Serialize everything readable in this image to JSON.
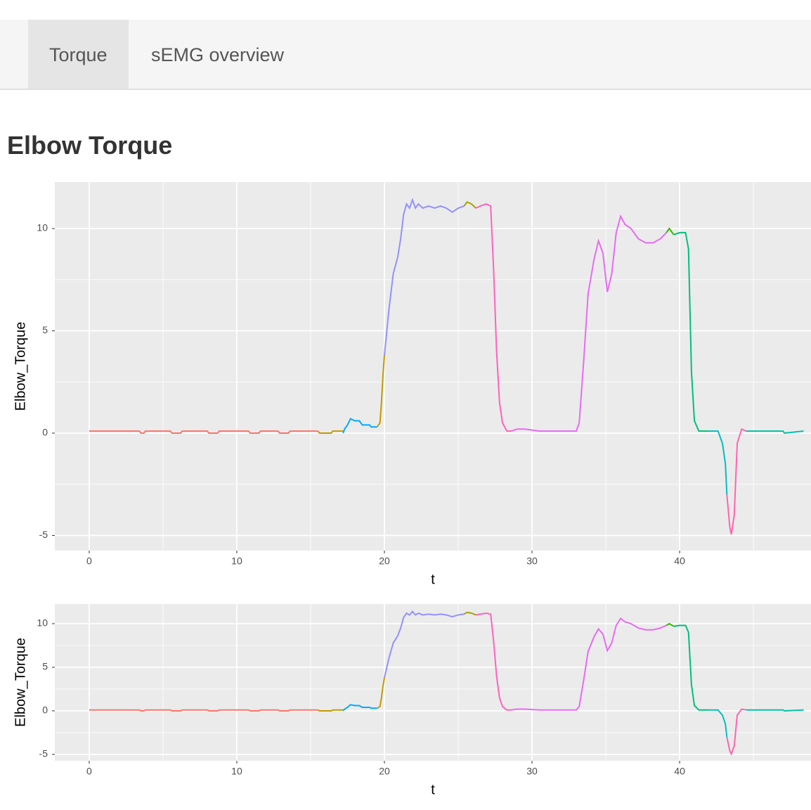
{
  "tabs": [
    "Torque",
    "sEMG overview"
  ],
  "heading": "Elbow Torque",
  "chart_data": [
    {
      "type": "line",
      "xlabel": "t",
      "ylabel": "Elbow_Torque",
      "xlim": [
        -2.33,
        48.9
      ],
      "ylim": [
        -5.74,
        12.27
      ],
      "xticks": [
        0,
        10,
        20,
        30,
        40
      ],
      "yticks": [
        -5,
        0,
        5,
        10
      ],
      "grid": true,
      "series": [
        {
          "color": "#F8766D",
          "x": [
            0,
            3.4,
            3.5,
            3.7,
            3.8,
            5.5,
            5.6,
            6.2,
            6.3,
            8,
            8.1,
            8.7,
            8.8,
            10.8,
            10.9,
            11.5,
            11.6,
            12.8,
            12.9,
            13.5,
            13.6,
            15.5
          ],
          "values": [
            0.1,
            0.1,
            0,
            0,
            0.1,
            0.1,
            0,
            0,
            0.1,
            0.1,
            0,
            0,
            0.1,
            0.1,
            0,
            0,
            0.1,
            0.1,
            0,
            0,
            0.1,
            0.1
          ]
        },
        {
          "color": "#C49A00",
          "x": [
            15.5,
            15.6,
            16.4,
            16.5,
            17.2
          ],
          "values": [
            0.1,
            0,
            0,
            0.1,
            0.1
          ]
        },
        {
          "color": "#00A9FF",
          "x": [
            17.2,
            17.3,
            17.5,
            17.7,
            18,
            18.3,
            18.5,
            18.6,
            19,
            19.1,
            19.5
          ],
          "values": [
            0,
            0.2,
            0.4,
            0.7,
            0.6,
            0.6,
            0.4,
            0.4,
            0.4,
            0.3,
            0.3
          ]
        },
        {
          "color": "#C49A00",
          "x": [
            19.5,
            19.7,
            19.8,
            19.9,
            20
          ],
          "values": [
            0.3,
            0.5,
            1.5,
            2.8,
            3.8
          ]
        },
        {
          "color": "#9590FF",
          "x": [
            20,
            20.3,
            20.6,
            20.9,
            21.1,
            21.3,
            21.5,
            21.7,
            21.9,
            22.1,
            22.3,
            22.6,
            23,
            23.4,
            23.8,
            24.2,
            24.6,
            25,
            25.4
          ],
          "values": [
            3.8,
            6,
            7.8,
            8.6,
            9.5,
            10.7,
            11.2,
            11,
            11.4,
            11,
            11.2,
            11,
            11.1,
            11,
            11.1,
            11,
            10.8,
            11,
            11.1
          ]
        },
        {
          "color": "#A3A500",
          "x": [
            25.4,
            25.6,
            25.9,
            26.2
          ],
          "values": [
            11.1,
            11.3,
            11.2,
            11
          ]
        },
        {
          "color": "#FF62BC",
          "x": [
            26.2,
            26.5,
            26.9,
            27.2,
            27.4,
            27.6,
            27.8,
            28,
            28.3,
            28.6
          ],
          "values": [
            11,
            11.1,
            11.2,
            11.1,
            8,
            4,
            1.5,
            0.5,
            0.1,
            0.1
          ]
        },
        {
          "color": "#E76BF3",
          "x": [
            28.6,
            29,
            29.5,
            30,
            30.5,
            33,
            33.2,
            33.5,
            33.8,
            34.2,
            34.5,
            34.8,
            35.1,
            35.4,
            35.7,
            36,
            36.3,
            36.7,
            37.2,
            37.7,
            38.2,
            38.7,
            39.1
          ],
          "values": [
            0.1,
            0.2,
            0.2,
            0.15,
            0.1,
            0.1,
            0.5,
            3.5,
            6.8,
            8.5,
            9.4,
            8.8,
            6.9,
            7.8,
            9.8,
            10.6,
            10.2,
            10,
            9.5,
            9.3,
            9.3,
            9.5,
            9.8
          ]
        },
        {
          "color": "#39B600",
          "x": [
            39.1,
            39.3,
            39.6
          ],
          "values": [
            9.8,
            10,
            9.7
          ]
        },
        {
          "color": "#00BF7D",
          "x": [
            39.6,
            40,
            40.4,
            40.6,
            40.8,
            41,
            41.3,
            42
          ],
          "values": [
            9.7,
            9.8,
            9.8,
            9,
            3,
            0.6,
            0.1,
            0.1
          ]
        },
        {
          "color": "#00BFC4",
          "x": [
            42,
            42.6,
            42.9,
            43.1,
            43.2
          ],
          "values": [
            0.1,
            0.1,
            -0.5,
            -1.5,
            -3
          ]
        },
        {
          "color": "#FF65AE",
          "x": [
            43.2,
            43.4,
            43.5,
            43.7,
            43.9,
            44.2,
            44.5
          ],
          "values": [
            -3,
            -4.6,
            -4.95,
            -4,
            -0.5,
            0.2,
            0.1
          ]
        },
        {
          "color": "#00C1A3",
          "x": [
            44.5,
            47,
            47.1,
            48.4
          ],
          "values": [
            0.1,
            0.1,
            0,
            0.1
          ]
        }
      ]
    },
    {
      "type": "line",
      "xlabel": "t",
      "ylabel": "Elbow_Torque",
      "xlim": [
        -2.33,
        48.9
      ],
      "ylim": [
        -5.73,
        12.26
      ],
      "xticks": [
        0,
        10,
        20,
        30,
        40
      ],
      "yticks": [
        -5,
        0,
        5,
        10
      ],
      "grid": true,
      "series": [
        {
          "color": "#F8766D",
          "x": [
            0,
            3.4,
            3.5,
            3.7,
            3.8,
            5.5,
            5.6,
            6.2,
            6.3,
            8,
            8.1,
            8.7,
            8.8,
            10.8,
            10.9,
            11.5,
            11.6,
            12.8,
            12.9,
            13.5,
            13.6,
            15.5
          ],
          "values": [
            0.1,
            0.1,
            0,
            0,
            0.1,
            0.1,
            0,
            0,
            0.1,
            0.1,
            0,
            0,
            0.1,
            0.1,
            0,
            0,
            0.1,
            0.1,
            0,
            0,
            0.1,
            0.1
          ]
        },
        {
          "color": "#C49A00",
          "x": [
            15.5,
            15.6,
            16.4,
            16.5,
            17.2
          ],
          "values": [
            0.1,
            0,
            0,
            0.1,
            0.1
          ]
        },
        {
          "color": "#00A9FF",
          "x": [
            17.2,
            17.3,
            17.5,
            17.7,
            18,
            18.3,
            18.5,
            18.6,
            19,
            19.1,
            19.5
          ],
          "values": [
            0,
            0.2,
            0.4,
            0.7,
            0.6,
            0.6,
            0.4,
            0.4,
            0.4,
            0.3,
            0.3
          ]
        },
        {
          "color": "#C49A00",
          "x": [
            19.5,
            19.7,
            19.8,
            19.9,
            20
          ],
          "values": [
            0.3,
            0.5,
            1.5,
            2.8,
            3.8
          ]
        },
        {
          "color": "#9590FF",
          "x": [
            20,
            20.3,
            20.6,
            20.9,
            21.1,
            21.3,
            21.5,
            21.7,
            21.9,
            22.1,
            22.3,
            22.6,
            23,
            23.4,
            23.8,
            24.2,
            24.6,
            25,
            25.4
          ],
          "values": [
            3.8,
            6,
            7.8,
            8.6,
            9.5,
            10.7,
            11.2,
            11,
            11.4,
            11,
            11.2,
            11,
            11.1,
            11,
            11.1,
            11,
            10.8,
            11,
            11.1
          ]
        },
        {
          "color": "#A3A500",
          "x": [
            25.4,
            25.6,
            25.9,
            26.2
          ],
          "values": [
            11.1,
            11.3,
            11.2,
            11
          ]
        },
        {
          "color": "#FF62BC",
          "x": [
            26.2,
            26.5,
            26.9,
            27.2,
            27.4,
            27.6,
            27.8,
            28,
            28.3,
            28.6
          ],
          "values": [
            11,
            11.1,
            11.2,
            11.1,
            8,
            4,
            1.5,
            0.5,
            0.1,
            0.1
          ]
        },
        {
          "color": "#E76BF3",
          "x": [
            28.6,
            29,
            29.5,
            30,
            30.5,
            33,
            33.2,
            33.5,
            33.8,
            34.2,
            34.5,
            34.8,
            35.1,
            35.4,
            35.7,
            36,
            36.3,
            36.7,
            37.2,
            37.7,
            38.2,
            38.7,
            39.1
          ],
          "values": [
            0.1,
            0.2,
            0.2,
            0.15,
            0.1,
            0.1,
            0.5,
            3.5,
            6.8,
            8.5,
            9.4,
            8.8,
            6.9,
            7.8,
            9.8,
            10.6,
            10.2,
            10,
            9.5,
            9.3,
            9.3,
            9.5,
            9.8
          ]
        },
        {
          "color": "#39B600",
          "x": [
            39.1,
            39.3,
            39.6
          ],
          "values": [
            9.8,
            10,
            9.7
          ]
        },
        {
          "color": "#00BF7D",
          "x": [
            39.6,
            40,
            40.4,
            40.6,
            40.8,
            41,
            41.3,
            42
          ],
          "values": [
            9.7,
            9.8,
            9.8,
            9,
            3,
            0.6,
            0.1,
            0.1
          ]
        },
        {
          "color": "#00BFC4",
          "x": [
            42,
            42.6,
            42.9,
            43.1,
            43.2
          ],
          "values": [
            0.1,
            0.1,
            -0.5,
            -1.5,
            -3
          ]
        },
        {
          "color": "#FF65AE",
          "x": [
            43.2,
            43.4,
            43.5,
            43.7,
            43.9,
            44.2,
            44.5
          ],
          "values": [
            -3,
            -4.6,
            -4.95,
            -4,
            -0.5,
            0.2,
            0.1
          ]
        },
        {
          "color": "#00C1A3",
          "x": [
            44.5,
            47,
            47.1,
            48.4
          ],
          "values": [
            0.1,
            0.1,
            0,
            0.1
          ]
        }
      ]
    }
  ]
}
